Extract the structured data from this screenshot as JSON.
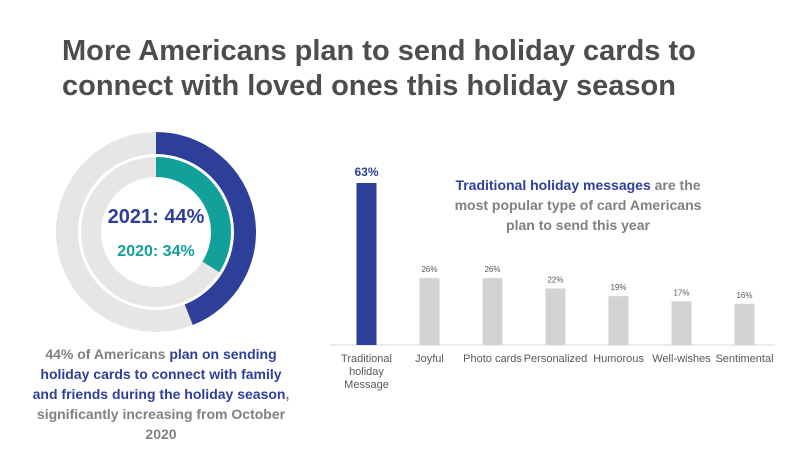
{
  "title": {
    "line1": "More Americans plan to send holiday cards to",
    "line2": "connect with loved ones this holiday season"
  },
  "donut": {
    "label_2021": "2021: 44%",
    "label_2020": "2020: 34%",
    "value_2021": 44,
    "value_2020": 34,
    "colors": {
      "c2021": "#2e3f9a",
      "c2020": "#12a09a",
      "track": "#e6e6e6"
    }
  },
  "caption": {
    "part1": "44% of Americans ",
    "highlight": "plan on sending holiday cards to connect with family and friends during the holiday season",
    "part2": ", significantly increasing from October 2020"
  },
  "callout": {
    "highlight": "Traditional holiday messages",
    "rest": " are the most popular type of card Americans plan to send this year"
  },
  "chart_data": [
    {
      "type": "pie",
      "title": "",
      "series": [
        {
          "name": "2021",
          "values": [
            44,
            56
          ]
        },
        {
          "name": "2020",
          "values": [
            34,
            66
          ]
        }
      ]
    },
    {
      "type": "bar",
      "categories": [
        "Traditional holiday Message",
        "Joyful",
        "Photo cards",
        "Personalized",
        "Humorous",
        "Well-wishes",
        "Sentimental"
      ],
      "values": [
        63,
        26,
        26,
        22,
        19,
        17,
        16
      ],
      "labels": [
        "63%",
        "26%",
        "26%",
        "22%",
        "19%",
        "17%",
        "16%"
      ],
      "colors": {
        "highlight": "#2e3f9a",
        "default": "#d3d3d3",
        "highlight_label": "#2e3f9a",
        "default_label": "#555555",
        "axis": "#d9d9d9"
      },
      "ylim": [
        0,
        70
      ],
      "grid": false,
      "legend": "none",
      "xlabel": "",
      "ylabel": ""
    }
  ]
}
